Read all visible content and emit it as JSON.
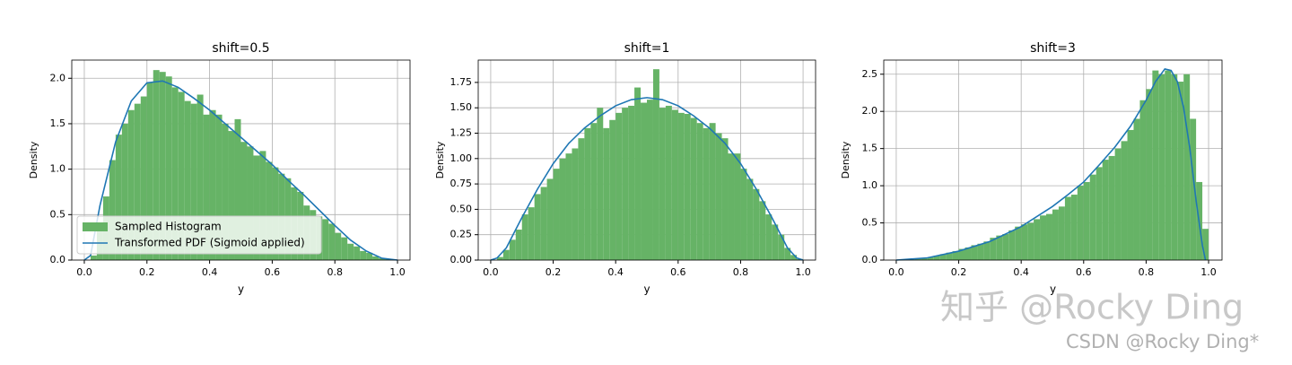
{
  "chart_data": [
    {
      "type": "histogram",
      "title": "shift=0.5",
      "xlabel": "y",
      "ylabel": "Density",
      "grid": true,
      "legend": "lower left",
      "hist_name": "Sampled Histogram",
      "color": "#66b366",
      "bins": [
        0,
        0.02,
        0.04,
        0.06,
        0.08,
        0.1,
        0.12,
        0.14,
        0.16,
        0.18,
        0.2,
        0.22,
        0.24,
        0.26,
        0.28,
        0.3,
        0.32,
        0.34,
        0.36,
        0.38,
        0.4,
        0.42,
        0.44,
        0.46,
        0.48,
        0.5,
        0.52,
        0.54,
        0.56,
        0.58,
        0.6,
        0.62,
        0.64,
        0.66,
        0.68,
        0.7,
        0.72,
        0.74,
        0.76,
        0.78,
        0.8,
        0.82,
        0.84,
        0.86,
        0.88,
        0.9,
        0.92,
        0.94,
        0.96,
        0.98,
        1
      ],
      "values": [
        0,
        0.05,
        0.35,
        0.7,
        1.1,
        1.38,
        1.5,
        1.65,
        1.72,
        1.8,
        1.95,
        2.09,
        2.07,
        2.02,
        1.9,
        1.85,
        1.75,
        1.72,
        1.82,
        1.6,
        1.65,
        1.6,
        1.5,
        1.42,
        1.55,
        1.3,
        1.25,
        1.15,
        1.2,
        1.08,
        1.02,
        0.95,
        0.9,
        0.8,
        0.75,
        0.6,
        0.55,
        0.48,
        0.45,
        0.4,
        0.3,
        0.25,
        0.18,
        0.15,
        0.1,
        0.08,
        0.04,
        0.02,
        0.01,
        0
      ],
      "line": {
        "name": "Transformed PDF (Sigmoid applied)",
        "color": "#1f77b4",
        "x": [
          0,
          0.02,
          0.05,
          0.1,
          0.15,
          0.2,
          0.25,
          0.3,
          0.35,
          0.4,
          0.45,
          0.5,
          0.55,
          0.6,
          0.65,
          0.7,
          0.75,
          0.8,
          0.85,
          0.9,
          0.95,
          1
        ],
        "y": [
          0,
          0.05,
          0.6,
          1.3,
          1.75,
          1.95,
          1.97,
          1.9,
          1.78,
          1.65,
          1.5,
          1.35,
          1.2,
          1.05,
          0.88,
          0.72,
          0.55,
          0.38,
          0.22,
          0.1,
          0.02,
          0
        ]
      },
      "xlim": [
        -0.04,
        1.04
      ],
      "ylim": [
        0,
        2.2
      ],
      "xticks": [
        {
          "value": 0,
          "label": "0.0"
        },
        0.2,
        0.4,
        0.6,
        0.8,
        {
          "value": 1,
          "label": "1.0"
        }
      ],
      "yticks": [
        {
          "value": 0,
          "label": "0.0"
        },
        0.5,
        {
          "value": 1,
          "label": "1.0"
        },
        1.5,
        {
          "value": 2,
          "label": "2.0"
        }
      ]
    },
    {
      "type": "histogram",
      "title": "shift=1",
      "xlabel": "y",
      "ylabel": "Density",
      "grid": true,
      "color": "#66b366",
      "bins": [
        0,
        0.02,
        0.04,
        0.06,
        0.08,
        0.1,
        0.12,
        0.14,
        0.16,
        0.18,
        0.2,
        0.22,
        0.24,
        0.26,
        0.28,
        0.3,
        0.32,
        0.34,
        0.36,
        0.38,
        0.4,
        0.42,
        0.44,
        0.46,
        0.48,
        0.5,
        0.52,
        0.54,
        0.56,
        0.58,
        0.6,
        0.62,
        0.64,
        0.66,
        0.68,
        0.7,
        0.72,
        0.74,
        0.76,
        0.78,
        0.8,
        0.82,
        0.84,
        0.86,
        0.88,
        0.9,
        0.92,
        0.94,
        0.96,
        0.98,
        1
      ],
      "values": [
        0,
        0.03,
        0.1,
        0.2,
        0.3,
        0.45,
        0.52,
        0.65,
        0.72,
        0.8,
        0.9,
        1.0,
        1.05,
        1.1,
        1.2,
        1.3,
        1.35,
        1.5,
        1.3,
        1.38,
        1.45,
        1.5,
        1.52,
        1.7,
        1.55,
        1.58,
        1.88,
        1.5,
        1.52,
        1.48,
        1.45,
        1.44,
        1.4,
        1.35,
        1.3,
        1.35,
        1.25,
        1.2,
        1.05,
        1.05,
        0.9,
        0.8,
        0.7,
        0.58,
        0.45,
        0.35,
        0.25,
        0.12,
        0.05,
        0.01
      ],
      "line": {
        "color": "#1f77b4",
        "x": [
          0,
          0.02,
          0.05,
          0.1,
          0.15,
          0.2,
          0.25,
          0.3,
          0.35,
          0.4,
          0.45,
          0.5,
          0.55,
          0.6,
          0.65,
          0.7,
          0.75,
          0.8,
          0.85,
          0.9,
          0.95,
          0.98,
          1
        ],
        "y": [
          0,
          0.02,
          0.12,
          0.42,
          0.7,
          0.95,
          1.15,
          1.3,
          1.42,
          1.52,
          1.58,
          1.6,
          1.58,
          1.52,
          1.42,
          1.3,
          1.15,
          0.95,
          0.7,
          0.42,
          0.12,
          0.02,
          0
        ]
      },
      "xlim": [
        -0.04,
        1.04
      ],
      "ylim": [
        0,
        1.97
      ],
      "xticks": [
        {
          "value": 0,
          "label": "0.0"
        },
        0.2,
        0.4,
        0.6,
        0.8,
        {
          "value": 1,
          "label": "1.0"
        }
      ],
      "yticks": [
        {
          "value": 0,
          "label": "0.00"
        },
        0.25,
        {
          "value": 0.5,
          "label": "0.50"
        },
        0.75,
        {
          "value": 1,
          "label": "1.00"
        },
        1.25,
        {
          "value": 1.5,
          "label": "1.50"
        },
        1.75
      ]
    },
    {
      "type": "histogram",
      "title": "shift=3",
      "xlabel": "y",
      "ylabel": "Density",
      "grid": true,
      "color": "#66b366",
      "bins": [
        0,
        0.02,
        0.04,
        0.06,
        0.08,
        0.1,
        0.12,
        0.14,
        0.16,
        0.18,
        0.2,
        0.22,
        0.24,
        0.26,
        0.28,
        0.3,
        0.32,
        0.34,
        0.36,
        0.38,
        0.4,
        0.42,
        0.44,
        0.46,
        0.48,
        0.5,
        0.52,
        0.54,
        0.56,
        0.58,
        0.6,
        0.62,
        0.64,
        0.66,
        0.68,
        0.7,
        0.72,
        0.74,
        0.76,
        0.78,
        0.8,
        0.82,
        0.84,
        0.86,
        0.88,
        0.9,
        0.92,
        0.94,
        0.96,
        0.98,
        1
      ],
      "values": [
        0,
        0,
        0.01,
        0.02,
        0.03,
        0.04,
        0.06,
        0.08,
        0.1,
        0.12,
        0.15,
        0.17,
        0.2,
        0.22,
        0.25,
        0.3,
        0.33,
        0.35,
        0.4,
        0.45,
        0.48,
        0.5,
        0.55,
        0.6,
        0.62,
        0.68,
        0.72,
        0.85,
        0.88,
        1.0,
        1.05,
        1.15,
        1.25,
        1.35,
        1.4,
        1.5,
        1.6,
        1.75,
        1.9,
        2.15,
        2.3,
        2.55,
        2.5,
        2.55,
        2.5,
        2.4,
        2.5,
        1.9,
        1.05,
        0.42
      ],
      "line": {
        "color": "#1f77b4",
        "x": [
          0,
          0.1,
          0.2,
          0.3,
          0.4,
          0.5,
          0.55,
          0.6,
          0.65,
          0.7,
          0.75,
          0.8,
          0.83,
          0.86,
          0.88,
          0.9,
          0.92,
          0.94,
          0.96,
          0.98,
          0.99
        ],
        "y": [
          0,
          0.03,
          0.12,
          0.25,
          0.45,
          0.72,
          0.88,
          1.05,
          1.28,
          1.52,
          1.8,
          2.15,
          2.4,
          2.57,
          2.55,
          2.4,
          2.05,
          1.5,
          0.8,
          0.2,
          0
        ]
      },
      "xlim": [
        -0.04,
        1.043
      ],
      "ylim": [
        0,
        2.69
      ],
      "xticks": [
        {
          "value": 0,
          "label": "0.0"
        },
        0.2,
        0.4,
        0.6,
        0.8,
        {
          "value": 1,
          "label": "1.0"
        }
      ],
      "yticks": [
        {
          "value": 0,
          "label": "0.0"
        },
        0.5,
        {
          "value": 1,
          "label": "1.0"
        },
        1.5,
        {
          "value": 2,
          "label": "2.0"
        },
        2.5
      ]
    }
  ],
  "watermarks": [
    "知乎 @Rocky Ding",
    "CSDN @Rocky Ding*"
  ]
}
